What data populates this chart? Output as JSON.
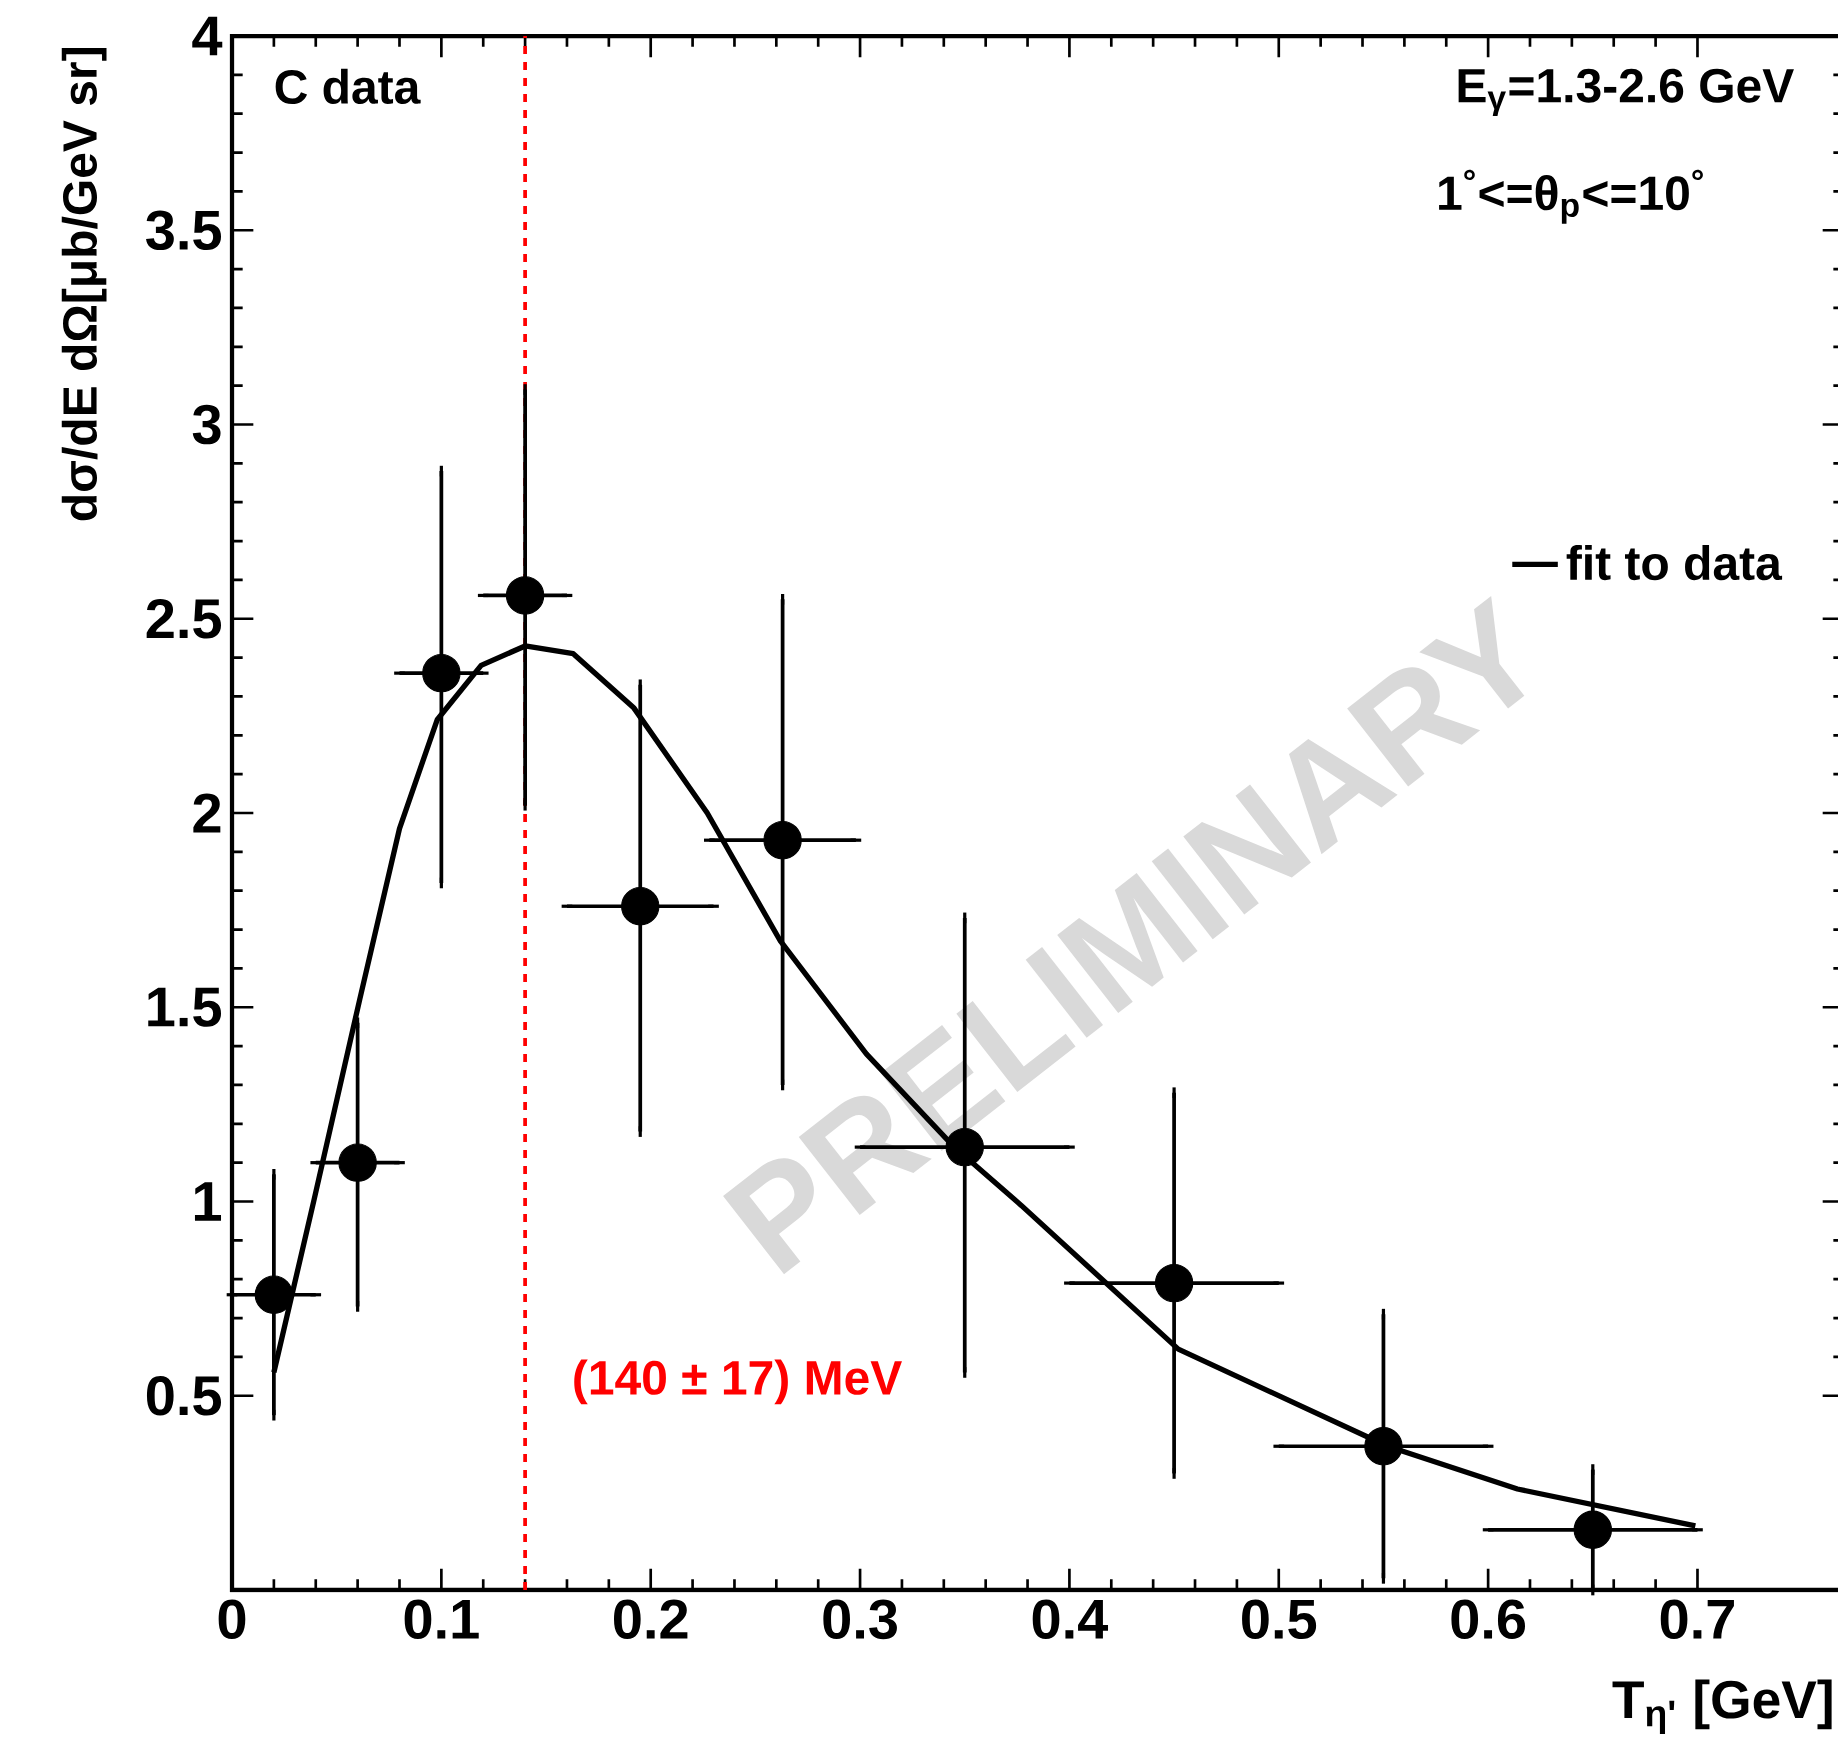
{
  "chart_data": {
    "type": "scatter",
    "xlabel": "T$_{η'}$ [GeV]",
    "ylabel": "dσ/dE dΩ[μb/GeV sr]",
    "annotations": [
      "C data",
      "E$_{γ}$=1.3-2.6 GeV",
      "1$^{°}$<=θ$_{p}$<=10$^{°}$",
      "PRELIMINARY"
    ],
    "x": [
      0.02,
      0.06,
      0.1,
      0.14,
      0.195,
      0.263,
      0.35,
      0.45,
      0.55,
      0.65
    ],
    "series": [
      {
        "type": "scatter",
        "color": "#000000",
        "marker": "circle",
        "values": [
          0.76,
          1.1,
          2.36,
          2.56,
          1.76,
          1.93,
          1.14,
          0.79,
          0.37,
          0.155
        ],
        "errors": [
          [
            0.45,
            1.07
          ],
          [
            0.73,
            1.46
          ],
          [
            1.82,
            2.88
          ],
          [
            2.02,
            3.09
          ],
          [
            1.18,
            2.33
          ],
          [
            1.3,
            2.55
          ],
          [
            0.56,
            1.73
          ],
          [
            0.3,
            1.28
          ],
          [
            0.03,
            0.71
          ],
          [
            0,
            0.31
          ]
        ],
        "xerrors": [
          0.02,
          0.02,
          0.02,
          0.02,
          0.035,
          0.035,
          0.05,
          0.05,
          0.05,
          0.05
        ]
      },
      {
        "type": "line",
        "name": "fit to data",
        "color": "#000000",
        "marker": "none",
        "line_style": "solid",
        "x": [
          0.02,
          0.039,
          0.061,
          0.08,
          0.098,
          0.119,
          0.14,
          0.163,
          0.192,
          0.227,
          0.262,
          0.303,
          0.345,
          0.377,
          0.452,
          0.552,
          0.614,
          0.699
        ],
        "values": [
          0.56,
          1.0,
          1.52,
          1.96,
          2.24,
          2.38,
          2.43,
          2.41,
          2.27,
          2.0,
          1.67,
          1.38,
          1.14,
          0.99,
          0.62,
          0.37,
          0.26,
          0.165
        ]
      }
    ],
    "xlim": [
      0,
      0.77
    ],
    "ylim": [
      0,
      4
    ],
    "xticks": [
      0,
      0.1,
      0.2,
      0.3,
      0.4,
      0.5,
      0.6,
      0.7
    ],
    "yticks": [
      0.5,
      1,
      1.5,
      2,
      2.5,
      3,
      3.5,
      4
    ],
    "ref_lines": [
      {
        "axis": "x",
        "value": 0.14,
        "label": "(140 ± 17) MeV",
        "color": "#ff0000",
        "line_style": "dashed"
      }
    ],
    "legend": "right"
  }
}
